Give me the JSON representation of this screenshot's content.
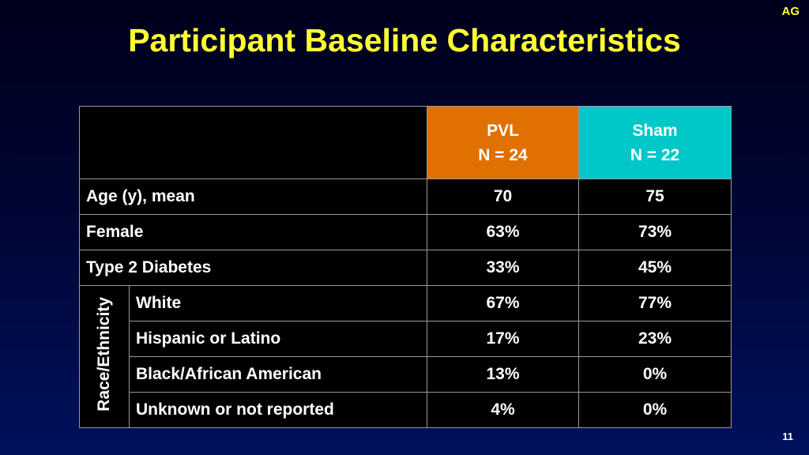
{
  "header": {
    "initials": "AG",
    "title": "Participant Baseline Characteristics"
  },
  "table": {
    "columns": {
      "pvl": {
        "name": "PVL",
        "n": "N = 24",
        "color": "#e07000"
      },
      "sham": {
        "name": "Sham",
        "n": "N = 22",
        "color": "#00c8c8"
      }
    },
    "rows": [
      {
        "label": "Age (y), mean",
        "pvl": "70",
        "sham": "75"
      },
      {
        "label": "Female",
        "pvl": "63%",
        "sham": "73%"
      },
      {
        "label": "Type 2 Diabetes",
        "pvl": "33%",
        "sham": "45%"
      }
    ],
    "race_group": {
      "label": "Race/Ethnicity",
      "rows": [
        {
          "label": "White",
          "pvl": "67%",
          "sham": "77%"
        },
        {
          "label": "Hispanic or Latino",
          "pvl": "17%",
          "sham": "23%"
        },
        {
          "label": "Black/African American",
          "pvl": "13%",
          "sham": "0%"
        },
        {
          "label": "Unknown or not reported",
          "pvl": "4%",
          "sham": "0%"
        }
      ]
    }
  },
  "footer": {
    "slide_number": "11"
  }
}
